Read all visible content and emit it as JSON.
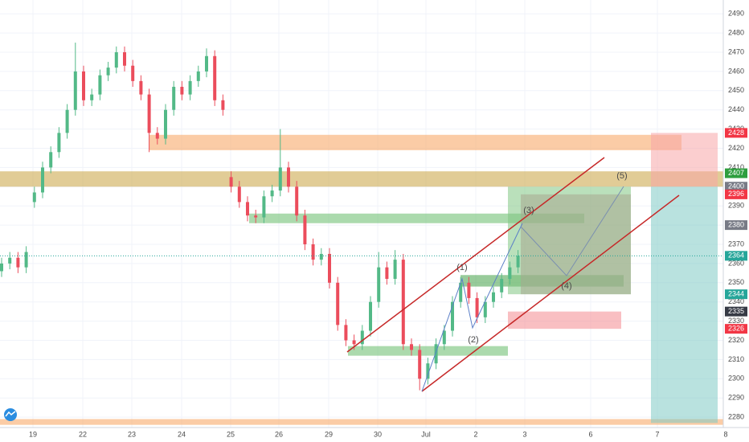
{
  "chart_data": {
    "type": "candlestick",
    "categories": [
      "19",
      "22",
      "23",
      "24",
      "25",
      "26",
      "29",
      "30",
      "Jul",
      "2",
      "3",
      "6",
      "7",
      "8"
    ],
    "candles": {
      "open": [
        2356,
        2360,
        2363,
        2358,
        2392,
        2397,
        2410,
        2418,
        2428,
        2440,
        2460,
        2445,
        2448,
        2458,
        2462,
        2470,
        2463,
        2455,
        2448,
        2428,
        2425,
        2440,
        2452,
        2448,
        2455,
        2460,
        2468,
        2445,
        2405,
        2400,
        2392,
        2385,
        2384,
        2395,
        2398,
        2410,
        2400,
        2385,
        2370,
        2362,
        2365,
        2350,
        2328,
        2320,
        2318,
        2325,
        2340,
        2358,
        2352,
        2362,
        2318,
        2315,
        2300,
        2308,
        2318,
        2325,
        2340,
        2350,
        2342,
        2332,
        2340,
        2345,
        2352,
        2358
      ],
      "high": [
        2363,
        2366,
        2366,
        2369,
        2400,
        2413,
        2421,
        2431,
        2443,
        2475,
        2463,
        2451,
        2461,
        2465,
        2473,
        2473,
        2466,
        2458,
        2451,
        2431,
        2443,
        2455,
        2455,
        2458,
        2463,
        2472,
        2471,
        2448,
        2408,
        2403,
        2395,
        2388,
        2398,
        2401,
        2430,
        2413,
        2403,
        2388,
        2373,
        2368,
        2368,
        2353,
        2331,
        2323,
        2328,
        2343,
        2366,
        2361,
        2367,
        2365,
        2321,
        2318,
        2311,
        2321,
        2328,
        2343,
        2353,
        2353,
        2345,
        2343,
        2348,
        2355,
        2361,
        2367
      ],
      "low": [
        2353,
        2357,
        2355,
        2355,
        2389,
        2394,
        2407,
        2415,
        2425,
        2437,
        2442,
        2442,
        2445,
        2455,
        2459,
        2460,
        2452,
        2445,
        2418,
        2422,
        2422,
        2437,
        2445,
        2445,
        2452,
        2457,
        2442,
        2437,
        2397,
        2389,
        2382,
        2381,
        2381,
        2392,
        2395,
        2397,
        2382,
        2367,
        2359,
        2359,
        2347,
        2325,
        2317,
        2315,
        2315,
        2322,
        2337,
        2349,
        2349,
        2315,
        2312,
        2294,
        2297,
        2305,
        2315,
        2322,
        2337,
        2339,
        2329,
        2329,
        2337,
        2342,
        2349,
        2355
      ],
      "close": [
        2360,
        2363,
        2358,
        2366,
        2397,
        2410,
        2418,
        2428,
        2440,
        2460,
        2445,
        2448,
        2458,
        2462,
        2470,
        2463,
        2455,
        2448,
        2428,
        2425,
        2440,
        2452,
        2448,
        2455,
        2460,
        2468,
        2445,
        2440,
        2400,
        2392,
        2385,
        2384,
        2395,
        2398,
        2410,
        2400,
        2385,
        2370,
        2362,
        2365,
        2350,
        2328,
        2320,
        2318,
        2325,
        2340,
        2358,
        2352,
        2362,
        2318,
        2315,
        2300,
        2308,
        2318,
        2325,
        2340,
        2350,
        2342,
        2332,
        2340,
        2345,
        2352,
        2358,
        2364
      ]
    },
    "up_color": "#53b987",
    "down_color": "#eb4d5c",
    "ylim": [
      2274.6,
      2497.2
    ],
    "yticks": [
      2280,
      2290,
      2300,
      2310,
      2320,
      2330,
      2340,
      2350,
      2360,
      2370,
      2380,
      2390,
      2400,
      2410,
      2420,
      2430,
      2440,
      2450,
      2460,
      2470,
      2480,
      2490
    ],
    "grid": true,
    "last_price": 2364,
    "price_labels": [
      {
        "value": 2428,
        "color": "#f23645"
      },
      {
        "value": 2407,
        "color": "#2e9e3e"
      },
      {
        "value": 2400,
        "color": "#787b86"
      },
      {
        "value": 2396,
        "color": "#f23645"
      },
      {
        "value": 2380,
        "color": "#787b86"
      },
      {
        "value": 2364,
        "color": "#26a69a"
      },
      {
        "value": 2344,
        "color": "#26a69a"
      },
      {
        "value": 2335,
        "color": "#363a45"
      },
      {
        "value": 2326,
        "color": "#f23645"
      }
    ],
    "zones": [
      {
        "top": 2427,
        "bottom": 2419,
        "color": "#f7a35c"
      },
      {
        "top": 2408,
        "bottom": 2400,
        "color": "#c9a23f"
      },
      {
        "top": 2386,
        "bottom": 2381,
        "color": "#66bb6a"
      },
      {
        "top": 2317,
        "bottom": 2312,
        "color": "#66bb6a"
      },
      {
        "top": 2354,
        "bottom": 2348,
        "color": "#43a047"
      },
      {
        "top": 2279,
        "bottom": 2276,
        "color": "#f7a35c"
      },
      {
        "top": 2400,
        "bottom": 2344,
        "color": "#81c784"
      },
      {
        "top": 2335,
        "bottom": 2326,
        "color": "#f48a90"
      },
      {
        "top": 2396,
        "bottom": 2344,
        "color": "#a8a890"
      },
      {
        "top": 2428,
        "bottom": 2400,
        "color": "#f8a5a8"
      },
      {
        "top": 2400,
        "bottom": 2277,
        "color": "#80cbc4"
      }
    ],
    "annotations": [
      "(1)",
      "(2)",
      "(3)",
      "(4)",
      "(5)"
    ]
  }
}
